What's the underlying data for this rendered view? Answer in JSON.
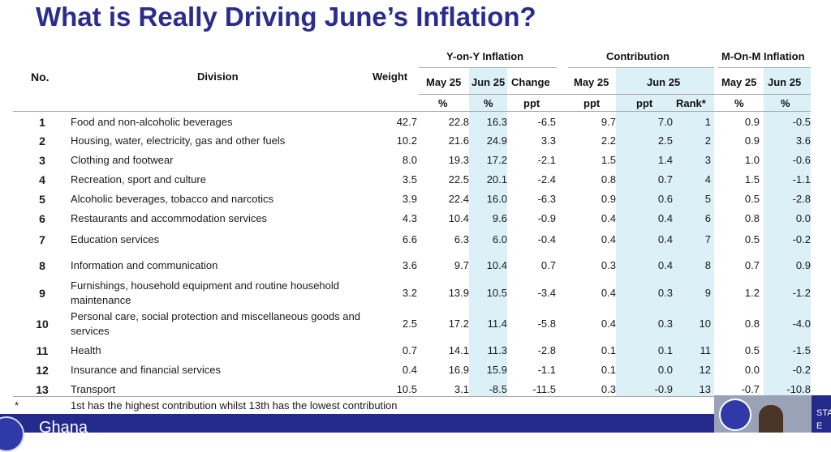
{
  "title": "What is Really Driving June’s Inflation?",
  "colors": {
    "title": "#2b2c8c",
    "highlight": "#dcf0f8",
    "footer": "#242a8c"
  },
  "header": {
    "no": "No.",
    "division": "Division",
    "weight": "Weight",
    "yoy_group": "Y-on-Y Inflation",
    "contribution_group": "Contribution",
    "mom_group": "M-On-M Inflation",
    "yoy_may": "May 25",
    "yoy_jun": "Jun 25",
    "yoy_change": "Change",
    "contrib_may": "May 25",
    "contrib_jun": "Jun 25",
    "mom_may": "May 25",
    "mom_jun": "Jun 25",
    "unit_yoy_may": "%",
    "unit_yoy_jun": "%",
    "unit_change": "ppt",
    "unit_contrib_may": "ppt",
    "unit_contrib_jun": "ppt",
    "unit_rank": "Rank*",
    "unit_mom_may": "%",
    "unit_mom_jun": "%"
  },
  "rows": [
    {
      "no": "1",
      "division": "Food and non-alcoholic beverages",
      "weight": "42.7",
      "yoy_may": "22.8",
      "yoy_jun": "16.3",
      "change": "-6.5",
      "contrib_may": "9.7",
      "contrib_jun": "7.0",
      "rank": "1",
      "mom_may": "0.9",
      "mom_jun": "-0.5"
    },
    {
      "no": "2",
      "division": "Housing, water, electricity, gas and other fuels",
      "weight": "10.2",
      "yoy_may": "21.6",
      "yoy_jun": "24.9",
      "change": "3.3",
      "contrib_may": "2.2",
      "contrib_jun": "2.5",
      "rank": "2",
      "mom_may": "0.9",
      "mom_jun": "3.6"
    },
    {
      "no": "3",
      "division": "Clothing and footwear",
      "weight": "8.0",
      "yoy_may": "19.3",
      "yoy_jun": "17.2",
      "change": "-2.1",
      "contrib_may": "1.5",
      "contrib_jun": "1.4",
      "rank": "3",
      "mom_may": "1.0",
      "mom_jun": "-0.6"
    },
    {
      "no": "4",
      "division": "Recreation, sport and culture",
      "weight": "3.5",
      "yoy_may": "22.5",
      "yoy_jun": "20.1",
      "change": "-2.4",
      "contrib_may": "0.8",
      "contrib_jun": "0.7",
      "rank": "4",
      "mom_may": "1.5",
      "mom_jun": "-1.1"
    },
    {
      "no": "5",
      "division": "Alcoholic beverages, tobacco and narcotics",
      "weight": "3.9",
      "yoy_may": "22.4",
      "yoy_jun": "16.0",
      "change": "-6.3",
      "contrib_may": "0.9",
      "contrib_jun": "0.6",
      "rank": "5",
      "mom_may": "0.5",
      "mom_jun": "-2.8"
    },
    {
      "no": "6",
      "division": "Restaurants and accommodation services",
      "weight": "4.3",
      "yoy_may": "10.4",
      "yoy_jun": "9.6",
      "change": "-0.9",
      "contrib_may": "0.4",
      "contrib_jun": "0.4",
      "rank": "6",
      "mom_may": "0.8",
      "mom_jun": "0.0"
    },
    {
      "no": "7",
      "division": "Education services",
      "weight": "6.6",
      "yoy_may": "6.3",
      "yoy_jun": "6.0",
      "change": "-0.4",
      "contrib_may": "0.4",
      "contrib_jun": "0.4",
      "rank": "7",
      "mom_may": "0.5",
      "mom_jun": "-0.2"
    },
    {
      "no": "8",
      "division": "Information and communication",
      "weight": "3.6",
      "yoy_may": "9.7",
      "yoy_jun": "10.4",
      "change": "0.7",
      "contrib_may": "0.3",
      "contrib_jun": "0.4",
      "rank": "8",
      "mom_may": "0.7",
      "mom_jun": "0.9"
    },
    {
      "no": "9",
      "division": "Furnishings, household equipment and routine household maintenance",
      "weight": "3.2",
      "yoy_may": "13.9",
      "yoy_jun": "10.5",
      "change": "-3.4",
      "contrib_may": "0.4",
      "contrib_jun": "0.3",
      "rank": "9",
      "mom_may": "1.2",
      "mom_jun": "-1.2"
    },
    {
      "no": "10",
      "division": "Personal care, social protection and miscellaneous goods and services",
      "weight": "2.5",
      "yoy_may": "17.2",
      "yoy_jun": "11.4",
      "change": "-5.8",
      "contrib_may": "0.4",
      "contrib_jun": "0.3",
      "rank": "10",
      "mom_may": "0.8",
      "mom_jun": "-4.0"
    },
    {
      "no": "11",
      "division": "Health",
      "weight": "0.7",
      "yoy_may": "14.1",
      "yoy_jun": "11.3",
      "change": "-2.8",
      "contrib_may": "0.1",
      "contrib_jun": "0.1",
      "rank": "11",
      "mom_may": "0.5",
      "mom_jun": "-1.5"
    },
    {
      "no": "12",
      "division": "Insurance and financial services",
      "weight": "0.4",
      "yoy_may": "16.9",
      "yoy_jun": "15.9",
      "change": "-1.1",
      "contrib_may": "0.1",
      "contrib_jun": "0.0",
      "rank": "12",
      "mom_may": "0.0",
      "mom_jun": "-0.2"
    },
    {
      "no": "13",
      "division": "Transport",
      "weight": "10.5",
      "yoy_may": "3.1",
      "yoy_jun": "-8.5",
      "change": "-11.5",
      "contrib_may": "0.3",
      "contrib_jun": "-0.9",
      "rank": "13",
      "mom_may": "-0.7",
      "mom_jun": "-10.8"
    }
  ],
  "footnote": {
    "mark": "*",
    "text": "1st has the highest contribution whilst 13th has the lowest contribution"
  },
  "footer": {
    "text": "Ghana"
  },
  "video_strip": {
    "text_1": "STA",
    "text_2": "E"
  },
  "icons": {
    "footer_logo": "statistical-service-seal-icon",
    "video_logo": "statistical-service-seal-icon"
  }
}
